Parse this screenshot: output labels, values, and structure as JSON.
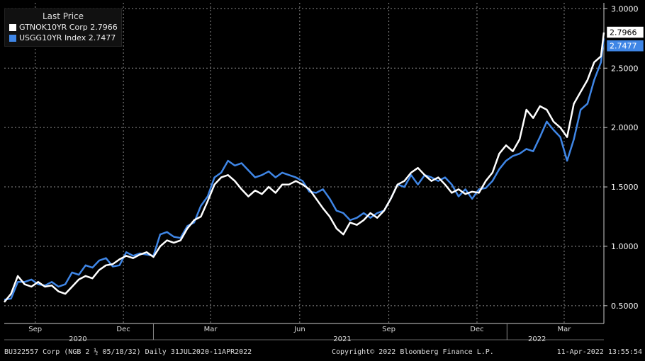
{
  "chart_data": {
    "type": "line",
    "title": "",
    "legend_title": "Last Price",
    "legend_position": "top-left",
    "x_range": [
      "2020-07-31",
      "2022-04-11"
    ],
    "ylim": [
      0.35,
      3.05
    ],
    "y_ticks": [
      "3.0000",
      "2.5000",
      "2.0000",
      "1.5000",
      "1.0000",
      "0.5000"
    ],
    "y_tick_values": [
      3.0,
      2.5,
      2.0,
      1.5,
      1.0,
      0.5
    ],
    "x_month_ticks": [
      {
        "label": "Sep",
        "date": "2020-09-01"
      },
      {
        "label": "Dec",
        "date": "2020-12-01"
      },
      {
        "label": "Mar",
        "date": "2021-03-01"
      },
      {
        "label": "Jun",
        "date": "2021-06-01"
      },
      {
        "label": "Sep",
        "date": "2021-09-01"
      },
      {
        "label": "Dec",
        "date": "2021-12-01"
      },
      {
        "label": "Mar",
        "date": "2022-03-01"
      }
    ],
    "x_year_labels": [
      {
        "label": "2020",
        "date": "2020-10-15"
      },
      {
        "label": "2021",
        "date": "2021-07-15"
      },
      {
        "label": "2022",
        "date": "2022-02-01"
      }
    ],
    "x_year_separators": [
      "2021-01-01",
      "2022-01-01"
    ],
    "grid": true,
    "series": [
      {
        "name": "GTNOK10YR Corp",
        "last_value": "2.7966",
        "color": "#ffffff",
        "x": [
          "2020-07-31",
          "2020-08-07",
          "2020-08-14",
          "2020-08-21",
          "2020-08-28",
          "2020-09-04",
          "2020-09-11",
          "2020-09-18",
          "2020-09-25",
          "2020-10-02",
          "2020-10-09",
          "2020-10-16",
          "2020-10-23",
          "2020-10-30",
          "2020-11-06",
          "2020-11-13",
          "2020-11-20",
          "2020-11-27",
          "2020-12-04",
          "2020-12-11",
          "2020-12-18",
          "2020-12-25",
          "2021-01-01",
          "2021-01-08",
          "2021-01-15",
          "2021-01-22",
          "2021-01-29",
          "2021-02-05",
          "2021-02-12",
          "2021-02-19",
          "2021-02-26",
          "2021-03-05",
          "2021-03-12",
          "2021-03-19",
          "2021-03-26",
          "2021-04-02",
          "2021-04-09",
          "2021-04-16",
          "2021-04-23",
          "2021-04-30",
          "2021-05-07",
          "2021-05-14",
          "2021-05-21",
          "2021-05-28",
          "2021-06-04",
          "2021-06-11",
          "2021-06-18",
          "2021-06-25",
          "2021-07-02",
          "2021-07-09",
          "2021-07-16",
          "2021-07-23",
          "2021-07-30",
          "2021-08-06",
          "2021-08-13",
          "2021-08-20",
          "2021-08-27",
          "2021-09-03",
          "2021-09-10",
          "2021-09-17",
          "2021-09-24",
          "2021-10-01",
          "2021-10-08",
          "2021-10-15",
          "2021-10-22",
          "2021-10-29",
          "2021-11-05",
          "2021-11-12",
          "2021-11-19",
          "2021-11-26",
          "2021-12-03",
          "2021-12-10",
          "2021-12-17",
          "2021-12-24",
          "2021-12-31",
          "2022-01-07",
          "2022-01-14",
          "2022-01-21",
          "2022-01-28",
          "2022-02-04",
          "2022-02-11",
          "2022-02-18",
          "2022-02-25",
          "2022-03-04",
          "2022-03-11",
          "2022-03-18",
          "2022-03-25",
          "2022-04-01",
          "2022-04-08",
          "2022-04-11"
        ],
        "y": [
          0.53,
          0.6,
          0.75,
          0.68,
          0.66,
          0.7,
          0.66,
          0.67,
          0.62,
          0.6,
          0.66,
          0.72,
          0.75,
          0.73,
          0.8,
          0.84,
          0.85,
          0.89,
          0.92,
          0.9,
          0.93,
          0.95,
          0.91,
          1.0,
          1.05,
          1.03,
          1.05,
          1.15,
          1.22,
          1.25,
          1.38,
          1.52,
          1.58,
          1.6,
          1.55,
          1.48,
          1.42,
          1.47,
          1.44,
          1.5,
          1.45,
          1.52,
          1.52,
          1.55,
          1.52,
          1.48,
          1.4,
          1.32,
          1.25,
          1.15,
          1.1,
          1.2,
          1.18,
          1.22,
          1.28,
          1.24,
          1.3,
          1.4,
          1.52,
          1.55,
          1.62,
          1.66,
          1.6,
          1.55,
          1.58,
          1.52,
          1.45,
          1.48,
          1.44,
          1.46,
          1.45,
          1.55,
          1.62,
          1.78,
          1.85,
          1.8,
          1.9,
          2.15,
          2.08,
          2.18,
          2.15,
          2.05,
          2.0,
          1.92,
          2.2,
          2.3,
          2.4,
          2.55,
          2.6,
          2.8
        ]
      },
      {
        "name": "USGG10YR Index",
        "last_value": "2.7477",
        "color": "#3f86e6",
        "x": [
          "2020-07-31",
          "2020-08-07",
          "2020-08-14",
          "2020-08-21",
          "2020-08-28",
          "2020-09-04",
          "2020-09-11",
          "2020-09-18",
          "2020-09-25",
          "2020-10-02",
          "2020-10-09",
          "2020-10-16",
          "2020-10-23",
          "2020-10-30",
          "2020-11-06",
          "2020-11-13",
          "2020-11-20",
          "2020-11-27",
          "2020-12-04",
          "2020-12-11",
          "2020-12-18",
          "2020-12-25",
          "2021-01-01",
          "2021-01-08",
          "2021-01-15",
          "2021-01-22",
          "2021-01-29",
          "2021-02-05",
          "2021-02-12",
          "2021-02-19",
          "2021-02-26",
          "2021-03-05",
          "2021-03-12",
          "2021-03-19",
          "2021-03-26",
          "2021-04-02",
          "2021-04-09",
          "2021-04-16",
          "2021-04-23",
          "2021-04-30",
          "2021-05-07",
          "2021-05-14",
          "2021-05-21",
          "2021-05-28",
          "2021-06-04",
          "2021-06-11",
          "2021-06-18",
          "2021-06-25",
          "2021-07-02",
          "2021-07-09",
          "2021-07-16",
          "2021-07-23",
          "2021-07-30",
          "2021-08-06",
          "2021-08-13",
          "2021-08-20",
          "2021-08-27",
          "2021-09-03",
          "2021-09-10",
          "2021-09-17",
          "2021-09-24",
          "2021-10-01",
          "2021-10-08",
          "2021-10-15",
          "2021-10-22",
          "2021-10-29",
          "2021-11-05",
          "2021-11-12",
          "2021-11-19",
          "2021-11-26",
          "2021-12-03",
          "2021-12-10",
          "2021-12-17",
          "2021-12-24",
          "2021-12-31",
          "2022-01-07",
          "2022-01-14",
          "2022-01-21",
          "2022-01-28",
          "2022-02-04",
          "2022-02-11",
          "2022-02-18",
          "2022-02-25",
          "2022-03-04",
          "2022-03-11",
          "2022-03-18",
          "2022-03-25",
          "2022-04-01",
          "2022-04-08",
          "2022-04-11"
        ],
        "y": [
          0.55,
          0.56,
          0.7,
          0.7,
          0.72,
          0.68,
          0.67,
          0.7,
          0.66,
          0.68,
          0.78,
          0.76,
          0.84,
          0.82,
          0.88,
          0.9,
          0.83,
          0.84,
          0.95,
          0.92,
          0.94,
          0.93,
          0.92,
          1.1,
          1.12,
          1.08,
          1.07,
          1.17,
          1.2,
          1.34,
          1.42,
          1.58,
          1.62,
          1.72,
          1.68,
          1.7,
          1.64,
          1.58,
          1.6,
          1.63,
          1.58,
          1.62,
          1.6,
          1.58,
          1.55,
          1.46,
          1.45,
          1.48,
          1.4,
          1.3,
          1.28,
          1.22,
          1.24,
          1.28,
          1.24,
          1.28,
          1.3,
          1.4,
          1.52,
          1.5,
          1.6,
          1.52,
          1.6,
          1.58,
          1.55,
          1.58,
          1.52,
          1.42,
          1.48,
          1.4,
          1.48,
          1.49,
          1.55,
          1.65,
          1.72,
          1.76,
          1.78,
          1.82,
          1.8,
          1.92,
          2.05,
          1.98,
          1.92,
          1.72,
          1.9,
          2.15,
          2.2,
          2.4,
          2.55,
          2.75
        ]
      }
    ]
  },
  "footer": {
    "left": "BU322557 Corp (NGB 2 ½ 05/18/32)  Daily 31JUL2020-11APR2022",
    "center": "Copyright© 2022 Bloomberg Finance L.P.",
    "right": "11-Apr-2022 13:55:54"
  }
}
